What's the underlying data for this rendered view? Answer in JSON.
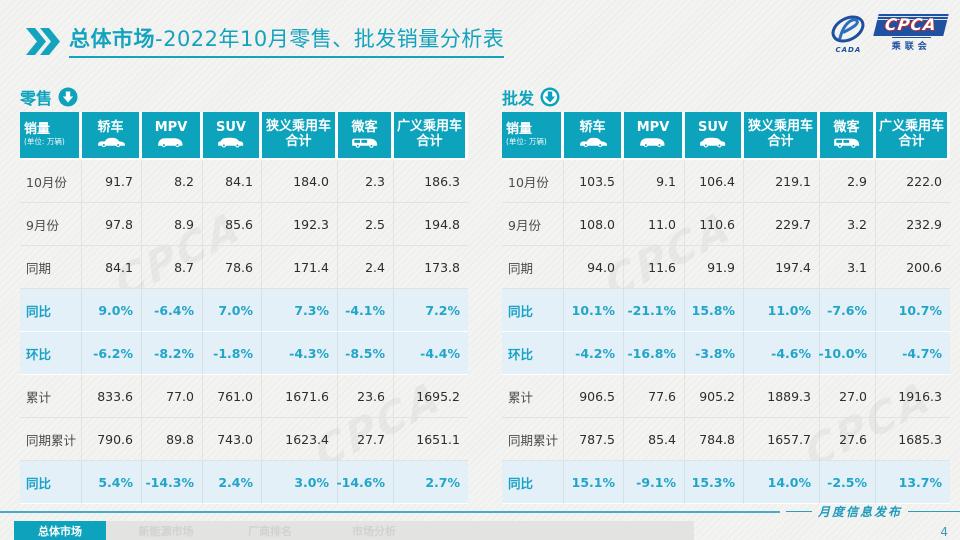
{
  "accent": "#0da3bd",
  "header": {
    "title_bold": "总体市场",
    "title_rest": "-2022年10月零售、批发销量分析表",
    "logo": {
      "cada_text": "CADA",
      "cpca_text": "CPCA",
      "cpca_cn": "乘联会"
    }
  },
  "watermark_text": "CPCA",
  "unit_header": {
    "label": "销量",
    "sub": "(单位: 万辆)"
  },
  "columns": [
    {
      "label": "轿车",
      "icon": "sedan-icon"
    },
    {
      "label": "MPV",
      "icon": "mpv-icon"
    },
    {
      "label": "SUV",
      "icon": "suv-icon"
    },
    {
      "label": "狭义乘用车",
      "label2": "合计"
    },
    {
      "label": "微客",
      "icon": "microvan-icon"
    },
    {
      "label": "广义乘用车",
      "label2": "合计"
    }
  ],
  "tables": [
    {
      "section_label": "零售",
      "arrow_style": "solid",
      "rows": [
        {
          "label": "10月份",
          "type": "data",
          "values": [
            "91.7",
            "8.2",
            "84.1",
            "184.0",
            "2.3",
            "186.3"
          ]
        },
        {
          "label": "9月份",
          "type": "data",
          "values": [
            "97.8",
            "8.9",
            "85.6",
            "192.3",
            "2.5",
            "194.8"
          ]
        },
        {
          "label": "同期",
          "type": "data",
          "values": [
            "84.1",
            "8.7",
            "78.6",
            "171.4",
            "2.4",
            "173.8"
          ]
        },
        {
          "label": "同比",
          "type": "pct",
          "values": [
            "9.0%",
            "-6.4%",
            "7.0%",
            "7.3%",
            "-4.1%",
            "7.2%"
          ]
        },
        {
          "label": "环比",
          "type": "pct",
          "values": [
            "-6.2%",
            "-8.2%",
            "-1.8%",
            "-4.3%",
            "-8.5%",
            "-4.4%"
          ]
        },
        {
          "label": "累计",
          "type": "data",
          "values": [
            "833.6",
            "77.0",
            "761.0",
            "1671.6",
            "23.6",
            "1695.2"
          ]
        },
        {
          "label": "同期累计",
          "type": "data",
          "values": [
            "790.6",
            "89.8",
            "743.0",
            "1623.4",
            "27.7",
            "1651.1"
          ]
        },
        {
          "label": "同比",
          "type": "pct",
          "values": [
            "5.4%",
            "-14.3%",
            "2.4%",
            "3.0%",
            "-14.6%",
            "2.7%"
          ]
        }
      ]
    },
    {
      "section_label": "批发",
      "arrow_style": "ring",
      "rows": [
        {
          "label": "10月份",
          "type": "data",
          "values": [
            "103.5",
            "9.1",
            "106.4",
            "219.1",
            "2.9",
            "222.0"
          ]
        },
        {
          "label": "9月份",
          "type": "data",
          "values": [
            "108.0",
            "11.0",
            "110.6",
            "229.7",
            "3.2",
            "232.9"
          ]
        },
        {
          "label": "同期",
          "type": "data",
          "values": [
            "94.0",
            "11.6",
            "91.9",
            "197.4",
            "3.1",
            "200.6"
          ]
        },
        {
          "label": "同比",
          "type": "pct",
          "values": [
            "10.1%",
            "-21.1%",
            "15.8%",
            "11.0%",
            "-7.6%",
            "10.7%"
          ]
        },
        {
          "label": "环比",
          "type": "pct",
          "values": [
            "-4.2%",
            "-16.8%",
            "-3.8%",
            "-4.6%",
            "-10.0%",
            "-4.7%"
          ]
        },
        {
          "label": "累计",
          "type": "data",
          "values": [
            "906.5",
            "77.6",
            "905.2",
            "1889.3",
            "27.0",
            "1916.3"
          ]
        },
        {
          "label": "同期累计",
          "type": "data",
          "values": [
            "787.5",
            "85.4",
            "784.8",
            "1657.7",
            "27.6",
            "1685.3"
          ]
        },
        {
          "label": "同比",
          "type": "pct",
          "values": [
            "15.1%",
            "-9.1%",
            "15.3%",
            "14.0%",
            "-2.5%",
            "13.7%"
          ]
        }
      ]
    }
  ],
  "footer": {
    "tabs": [
      {
        "label": "总体市场",
        "active": true
      },
      {
        "label": "新能源市场",
        "active": false
      },
      {
        "label": "厂商排名",
        "active": false
      },
      {
        "label": "市场分析",
        "active": false
      }
    ],
    "release_label": "月度信息发布",
    "page_number": "4"
  }
}
